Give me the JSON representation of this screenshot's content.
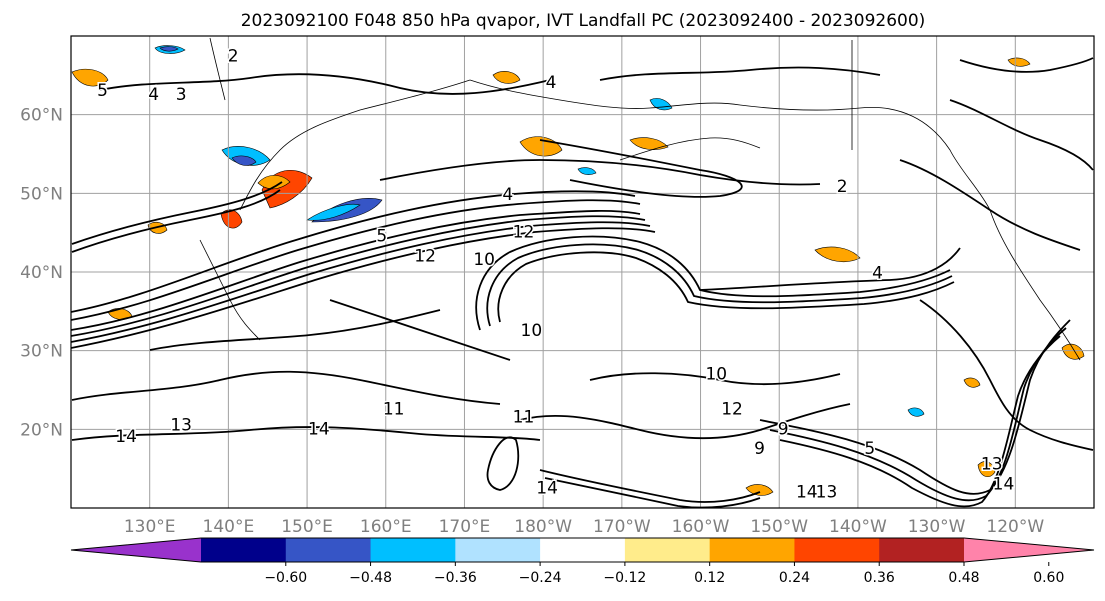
{
  "title": "2023092100 F048 850 hPa qvapor, IVT Landfall PC (2023092400 - 2023092600)",
  "map": {
    "lon_ticks": [
      "130°E",
      "140°E",
      "150°E",
      "160°E",
      "170°E",
      "180°W",
      "170°W",
      "160°W",
      "150°W",
      "140°W",
      "130°W",
      "120°W"
    ],
    "lat_ticks": [
      "60°N",
      "50°N",
      "40°N",
      "30°N",
      "20°N"
    ],
    "lon_range": [
      120,
      250
    ],
    "lat_range": [
      10,
      70
    ],
    "grid": true,
    "contour_labels": [
      {
        "text": "2",
        "lon": 140.6,
        "lat": 67.4
      },
      {
        "text": "5",
        "lon": 124.0,
        "lat": 63.0
      },
      {
        "text": "4",
        "lon": 130.5,
        "lat": 62.5
      },
      {
        "text": "3",
        "lon": 134.0,
        "lat": 62.5
      },
      {
        "text": "4",
        "lon": 181.0,
        "lat": 64.0
      },
      {
        "text": "2",
        "lon": 218.0,
        "lat": 50.8
      },
      {
        "text": "4",
        "lon": 175.5,
        "lat": 49.8
      },
      {
        "text": "12",
        "lon": 177.5,
        "lat": 45.0
      },
      {
        "text": "12",
        "lon": 165.0,
        "lat": 42.0
      },
      {
        "text": "10",
        "lon": 172.5,
        "lat": 41.5
      },
      {
        "text": "5",
        "lon": 159.5,
        "lat": 44.5
      },
      {
        "text": "4",
        "lon": 222.5,
        "lat": 39.8
      },
      {
        "text": "10",
        "lon": 178.5,
        "lat": 32.5
      },
      {
        "text": "14",
        "lon": 127.0,
        "lat": 19.0
      },
      {
        "text": "14",
        "lon": 151.5,
        "lat": 20.0
      },
      {
        "text": "13",
        "lon": 134.0,
        "lat": 20.5
      },
      {
        "text": "11",
        "lon": 161.0,
        "lat": 22.5
      },
      {
        "text": "11",
        "lon": 177.5,
        "lat": 21.5
      },
      {
        "text": "14",
        "lon": 180.5,
        "lat": 12.5
      },
      {
        "text": "12",
        "lon": 204.0,
        "lat": 22.5
      },
      {
        "text": "9",
        "lon": 210.5,
        "lat": 20.0
      },
      {
        "text": "9",
        "lon": 207.5,
        "lat": 17.5
      },
      {
        "text": "5",
        "lon": 221.5,
        "lat": 17.5
      },
      {
        "text": "14",
        "lon": 213.5,
        "lat": 12.0
      },
      {
        "text": "13",
        "lon": 216.0,
        "lat": 12.0
      },
      {
        "text": "13",
        "lon": 237.0,
        "lat": 15.5
      },
      {
        "text": "14",
        "lon": 238.5,
        "lat": 13.0
      },
      {
        "text": "10",
        "lon": 202.0,
        "lat": 27.0
      }
    ]
  },
  "colorbar": {
    "tick_labels": [
      "−0.60",
      "−0.48",
      "−0.36",
      "−0.24",
      "−0.12",
      "0.12",
      "0.24",
      "0.36",
      "0.48",
      "0.60"
    ],
    "colors": [
      "#9932cc",
      "#00008b",
      "#3655c6",
      "#00bfff",
      "#b0e2ff",
      "#ffffff",
      "#ffec8b",
      "#ffa500",
      "#ff4500",
      "#b22222",
      "#ff83aa"
    ]
  }
}
